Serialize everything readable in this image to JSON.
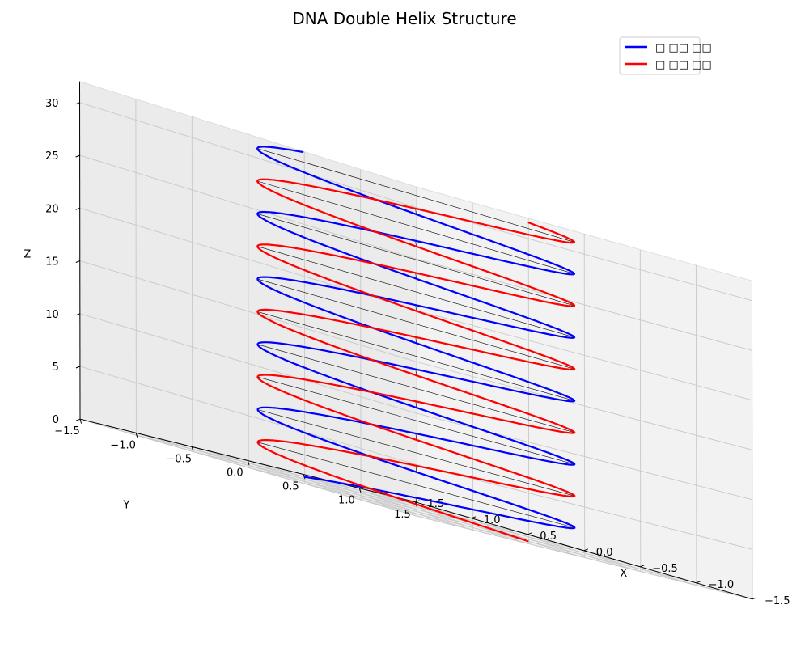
{
  "chart_data": {
    "type": "line",
    "projection": "3d",
    "title": "DNA Double Helix Structure",
    "xlabel": "X",
    "ylabel": "Y",
    "zlabel": "Z",
    "xlim": [
      -1.5,
      1.5
    ],
    "ylim": [
      -1.5,
      1.5
    ],
    "zlim": [
      0,
      32
    ],
    "x_ticks": [
      "−1.5",
      "−1.0",
      "−0.5",
      "0.0",
      "0.5",
      "1.0",
      "1.5"
    ],
    "y_ticks": [
      "−1.5",
      "−1.0",
      "−0.5",
      "0.0",
      "0.5",
      "1.0",
      "1.5"
    ],
    "z_ticks": [
      "0",
      "5",
      "10",
      "15",
      "20",
      "25",
      "30"
    ],
    "grid": true,
    "legend_position": "top-right",
    "series": [
      {
        "name": "□ □□ □□",
        "color": "#0000ff",
        "function": "helix",
        "radius": 1.0,
        "turns": 5,
        "z_range": [
          0,
          31.4
        ],
        "phase_deg": 0
      },
      {
        "name": "□ □□ □□",
        "color": "#ff0000",
        "function": "helix",
        "radius": 1.0,
        "turns": 5,
        "z_range": [
          0,
          31.4
        ],
        "phase_deg": 180
      }
    ],
    "base_pairs": {
      "count": 20,
      "color": "#000000"
    }
  }
}
